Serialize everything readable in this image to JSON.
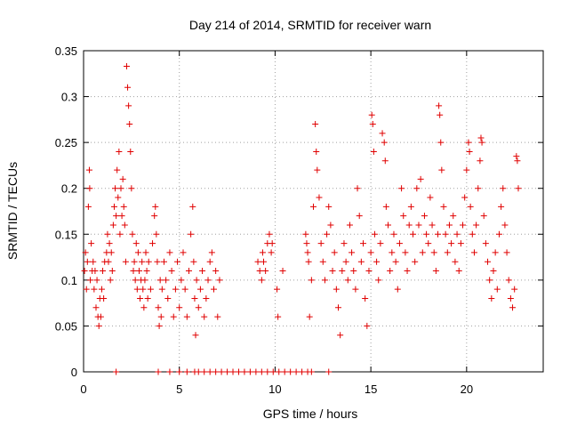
{
  "chart_data": {
    "type": "scatter",
    "title": "Day 214 of 2014, SRMTID for receiver warn",
    "xlabel": "GPS time / hours",
    "ylabel": "SRMTID / TECUs",
    "xlim": [
      0,
      24
    ],
    "ylim": [
      0,
      0.35
    ],
    "xticks": [
      0,
      5,
      10,
      15,
      20
    ],
    "yticks": [
      0,
      0.05,
      0.1,
      0.15,
      0.2,
      0.25,
      0.3,
      0.35
    ],
    "xtick_labels": [
      "0",
      "5",
      "10",
      "15",
      "20"
    ],
    "ytick_labels": [
      "0",
      "0.05",
      "0.1",
      "0.15",
      "0.2",
      "0.25",
      "0.3",
      "0.35"
    ],
    "grid": true,
    "marker": "+",
    "color": "#e00000",
    "series": [
      {
        "name": "SRMTID",
        "points": [
          [
            0.05,
            0.11
          ],
          [
            0.1,
            0.13
          ],
          [
            0.15,
            0.09
          ],
          [
            0.2,
            0.12
          ],
          [
            0.25,
            0.18
          ],
          [
            0.3,
            0.22
          ],
          [
            0.32,
            0.2
          ],
          [
            0.35,
            0.1
          ],
          [
            0.4,
            0.14
          ],
          [
            0.45,
            0.11
          ],
          [
            0.5,
            0.12
          ],
          [
            0.55,
            0.09
          ],
          [
            0.6,
            0.11
          ],
          [
            0.65,
            0.07
          ],
          [
            0.7,
            0.1
          ],
          [
            0.75,
            0.06
          ],
          [
            0.8,
            0.05
          ],
          [
            0.85,
            0.08
          ],
          [
            0.9,
            0.06
          ],
          [
            0.95,
            0.09
          ],
          [
            1.0,
            0.11
          ],
          [
            1.05,
            0.08
          ],
          [
            1.1,
            0.12
          ],
          [
            1.2,
            0.13
          ],
          [
            1.25,
            0.15
          ],
          [
            1.3,
            0.12
          ],
          [
            1.35,
            0.14
          ],
          [
            1.4,
            0.1
          ],
          [
            1.45,
            0.13
          ],
          [
            1.5,
            0.11
          ],
          [
            1.55,
            0.16
          ],
          [
            1.6,
            0.18
          ],
          [
            1.65,
            0.2
          ],
          [
            1.7,
            0.17
          ],
          [
            1.75,
            0.22
          ],
          [
            1.8,
            0.19
          ],
          [
            1.85,
            0.24
          ],
          [
            1.9,
            0.15
          ],
          [
            1.95,
            0.2
          ],
          [
            2.0,
            0.17
          ],
          [
            2.05,
            0.21
          ],
          [
            2.1,
            0.18
          ],
          [
            2.15,
            0.16
          ],
          [
            2.2,
            0.12
          ],
          [
            2.25,
            0.333
          ],
          [
            2.3,
            0.31
          ],
          [
            2.35,
            0.29
          ],
          [
            2.4,
            0.27
          ],
          [
            2.45,
            0.24
          ],
          [
            2.5,
            0.2
          ],
          [
            2.55,
            0.15
          ],
          [
            2.6,
            0.11
          ],
          [
            2.65,
            0.12
          ],
          [
            2.7,
            0.1
          ],
          [
            2.75,
            0.14
          ],
          [
            2.8,
            0.09
          ],
          [
            2.85,
            0.13
          ],
          [
            2.9,
            0.11
          ],
          [
            2.95,
            0.08
          ],
          [
            3.0,
            0.1
          ],
          [
            3.05,
            0.12
          ],
          [
            3.1,
            0.09
          ],
          [
            3.15,
            0.07
          ],
          [
            3.2,
            0.1
          ],
          [
            3.25,
            0.13
          ],
          [
            3.3,
            0.11
          ],
          [
            3.35,
            0.08
          ],
          [
            3.4,
            0.12
          ],
          [
            3.5,
            0.09
          ],
          [
            3.6,
            0.14
          ],
          [
            3.7,
            0.17
          ],
          [
            3.75,
            0.18
          ],
          [
            3.8,
            0.15
          ],
          [
            3.85,
            0.12
          ],
          [
            3.9,
            0.07
          ],
          [
            3.95,
            0.05
          ],
          [
            4.0,
            0.1
          ],
          [
            4.05,
            0.06
          ],
          [
            4.1,
            0.09
          ],
          [
            4.2,
            0.12
          ],
          [
            4.3,
            0.1
          ],
          [
            4.4,
            0.08
          ],
          [
            4.5,
            0.13
          ],
          [
            4.6,
            0.11
          ],
          [
            4.7,
            0.06
          ],
          [
            4.8,
            0.09
          ],
          [
            4.9,
            0.12
          ],
          [
            5.0,
            0.07
          ],
          [
            5.1,
            0.1
          ],
          [
            5.2,
            0.13
          ],
          [
            5.3,
            0.09
          ],
          [
            5.4,
            0.06
          ],
          [
            5.5,
            0.11
          ],
          [
            5.6,
            0.15
          ],
          [
            5.7,
            0.18
          ],
          [
            5.75,
            0.12
          ],
          [
            5.8,
            0.08
          ],
          [
            5.85,
            0.04
          ],
          [
            5.9,
            0.1
          ],
          [
            6.0,
            0.07
          ],
          [
            6.1,
            0.09
          ],
          [
            6.2,
            0.11
          ],
          [
            6.3,
            0.06
          ],
          [
            6.4,
            0.08
          ],
          [
            6.5,
            0.1
          ],
          [
            6.6,
            0.12
          ],
          [
            6.7,
            0.13
          ],
          [
            6.8,
            0.09
          ],
          [
            6.9,
            0.11
          ],
          [
            7.0,
            0.06
          ],
          [
            7.1,
            0.1
          ],
          [
            9.1,
            0.12
          ],
          [
            9.2,
            0.11
          ],
          [
            9.3,
            0.1
          ],
          [
            9.35,
            0.13
          ],
          [
            9.4,
            0.12
          ],
          [
            9.5,
            0.11
          ],
          [
            9.6,
            0.14
          ],
          [
            9.7,
            0.15
          ],
          [
            9.8,
            0.13
          ],
          [
            9.85,
            0.14
          ],
          [
            10.1,
            0.09
          ],
          [
            10.15,
            0.06
          ],
          [
            10.4,
            0.11
          ],
          [
            11.6,
            0.15
          ],
          [
            11.65,
            0.14
          ],
          [
            11.7,
            0.13
          ],
          [
            11.75,
            0.12
          ],
          [
            11.8,
            0.06
          ],
          [
            11.9,
            0.1
          ],
          [
            12.0,
            0.18
          ],
          [
            12.1,
            0.27
          ],
          [
            12.15,
            0.24
          ],
          [
            12.2,
            0.22
          ],
          [
            12.3,
            0.19
          ],
          [
            12.4,
            0.14
          ],
          [
            12.5,
            0.12
          ],
          [
            12.6,
            0.1
          ],
          [
            12.7,
            0.15
          ],
          [
            12.8,
            0.18
          ],
          [
            12.9,
            0.16
          ],
          [
            13.0,
            0.11
          ],
          [
            13.1,
            0.13
          ],
          [
            13.2,
            0.09
          ],
          [
            13.3,
            0.07
          ],
          [
            13.4,
            0.04
          ],
          [
            13.5,
            0.11
          ],
          [
            13.6,
            0.14
          ],
          [
            13.7,
            0.12
          ],
          [
            13.8,
            0.1
          ],
          [
            13.9,
            0.16
          ],
          [
            14.0,
            0.13
          ],
          [
            14.1,
            0.11
          ],
          [
            14.2,
            0.09
          ],
          [
            14.3,
            0.2
          ],
          [
            14.4,
            0.17
          ],
          [
            14.5,
            0.12
          ],
          [
            14.6,
            0.14
          ],
          [
            14.7,
            0.08
          ],
          [
            14.8,
            0.05
          ],
          [
            14.9,
            0.11
          ],
          [
            15.0,
            0.13
          ],
          [
            15.05,
            0.28
          ],
          [
            15.1,
            0.27
          ],
          [
            15.15,
            0.24
          ],
          [
            15.2,
            0.15
          ],
          [
            15.3,
            0.12
          ],
          [
            15.4,
            0.1
          ],
          [
            15.5,
            0.14
          ],
          [
            15.6,
            0.26
          ],
          [
            15.7,
            0.25
          ],
          [
            15.75,
            0.23
          ],
          [
            15.8,
            0.18
          ],
          [
            15.9,
            0.16
          ],
          [
            16.0,
            0.11
          ],
          [
            16.1,
            0.13
          ],
          [
            16.2,
            0.15
          ],
          [
            16.3,
            0.12
          ],
          [
            16.4,
            0.09
          ],
          [
            16.5,
            0.14
          ],
          [
            16.6,
            0.2
          ],
          [
            16.7,
            0.17
          ],
          [
            16.8,
            0.13
          ],
          [
            16.9,
            0.11
          ],
          [
            17.0,
            0.16
          ],
          [
            17.1,
            0.18
          ],
          [
            17.2,
            0.15
          ],
          [
            17.3,
            0.12
          ],
          [
            17.4,
            0.2
          ],
          [
            17.5,
            0.16
          ],
          [
            17.6,
            0.21
          ],
          [
            17.7,
            0.13
          ],
          [
            17.8,
            0.17
          ],
          [
            17.9,
            0.15
          ],
          [
            18.0,
            0.14
          ],
          [
            18.1,
            0.19
          ],
          [
            18.2,
            0.16
          ],
          [
            18.3,
            0.13
          ],
          [
            18.4,
            0.11
          ],
          [
            18.5,
            0.15
          ],
          [
            18.55,
            0.29
          ],
          [
            18.6,
            0.28
          ],
          [
            18.65,
            0.25
          ],
          [
            18.7,
            0.22
          ],
          [
            18.8,
            0.18
          ],
          [
            18.9,
            0.15
          ],
          [
            19.0,
            0.13
          ],
          [
            19.1,
            0.16
          ],
          [
            19.2,
            0.14
          ],
          [
            19.3,
            0.17
          ],
          [
            19.4,
            0.12
          ],
          [
            19.5,
            0.15
          ],
          [
            19.6,
            0.11
          ],
          [
            19.7,
            0.14
          ],
          [
            19.8,
            0.16
          ],
          [
            19.9,
            0.19
          ],
          [
            20.0,
            0.22
          ],
          [
            20.1,
            0.25
          ],
          [
            20.15,
            0.24
          ],
          [
            20.2,
            0.18
          ],
          [
            20.3,
            0.15
          ],
          [
            20.4,
            0.13
          ],
          [
            20.5,
            0.16
          ],
          [
            20.6,
            0.2
          ],
          [
            20.7,
            0.23
          ],
          [
            20.75,
            0.255
          ],
          [
            20.8,
            0.25
          ],
          [
            20.9,
            0.17
          ],
          [
            21.0,
            0.14
          ],
          [
            21.1,
            0.12
          ],
          [
            21.2,
            0.1
          ],
          [
            21.3,
            0.08
          ],
          [
            21.4,
            0.11
          ],
          [
            21.5,
            0.13
          ],
          [
            21.6,
            0.09
          ],
          [
            21.7,
            0.15
          ],
          [
            21.8,
            0.18
          ],
          [
            21.9,
            0.2
          ],
          [
            22.0,
            0.16
          ],
          [
            22.1,
            0.13
          ],
          [
            22.2,
            0.1
          ],
          [
            22.3,
            0.08
          ],
          [
            22.4,
            0.07
          ],
          [
            22.5,
            0.09
          ],
          [
            22.6,
            0.235
          ],
          [
            22.65,
            0.23
          ],
          [
            22.7,
            0.2
          ]
        ]
      }
    ],
    "zero_points": [
      1.7,
      3.9,
      4.5,
      5.0,
      5.4,
      5.8,
      6.0,
      6.3,
      6.6,
      6.9,
      7.2,
      7.5,
      7.8,
      8.1,
      8.4,
      8.7,
      9.0,
      9.3,
      9.6,
      9.9,
      10.2,
      10.5,
      10.8,
      11.1,
      11.4,
      11.7,
      11.9,
      12.8
    ]
  }
}
